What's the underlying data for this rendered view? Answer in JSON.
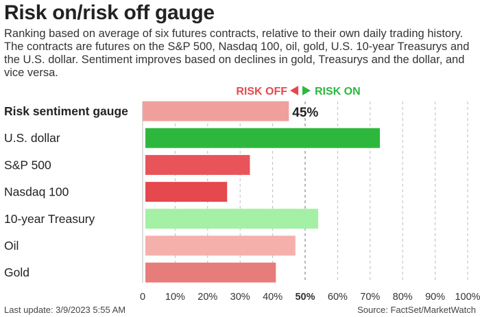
{
  "title": "Risk on/risk off gauge",
  "subtitle": "Ranking based on average of six futures contracts, relative to their own daily trading history. The contracts are futures on the S&P 500, Nasdaq 100, oil, gold, U.S. 10-year Treasurys and the U.S. dollar. Sentiment improves based on declines in gold, Treasurys and the dollar, and vice versa.",
  "legend": {
    "risk_off": "RISK OFF",
    "risk_on": "RISK ON"
  },
  "footer": {
    "last_update": "Last update: 3/9/2023 5:55 AM",
    "source": "Source: FactSet/MarketWatch"
  },
  "colors": {
    "risk_off": "#e8474c",
    "risk_on": "#2db83d"
  },
  "chart_data": {
    "type": "bar",
    "orientation": "horizontal",
    "categories": [
      "Risk sentiment gauge",
      "U.S. dollar",
      "S&P 500",
      "Nasdaq 100",
      "10-year Treasury",
      "Oil",
      "Gold"
    ],
    "values": [
      45,
      73,
      33,
      26,
      54,
      47,
      41
    ],
    "value_labels": [
      "45%",
      "",
      "",
      "",
      "",
      "",
      ""
    ],
    "bar_colors": [
      "#f0a09c",
      "#2db83d",
      "#e8545a",
      "#e5484d",
      "#a4f0a4",
      "#f5b0ac",
      "#e77d7a"
    ],
    "xlim": [
      0,
      100
    ],
    "xticks": [
      0,
      10,
      20,
      30,
      40,
      50,
      60,
      70,
      80,
      90,
      100
    ],
    "xtick_labels": [
      "0",
      "10%",
      "20%",
      "30%",
      "40%",
      "50%",
      "60%",
      "70%",
      "80%",
      "90%",
      "100%"
    ],
    "grid": "vertical dashed",
    "reference_line": 50
  }
}
